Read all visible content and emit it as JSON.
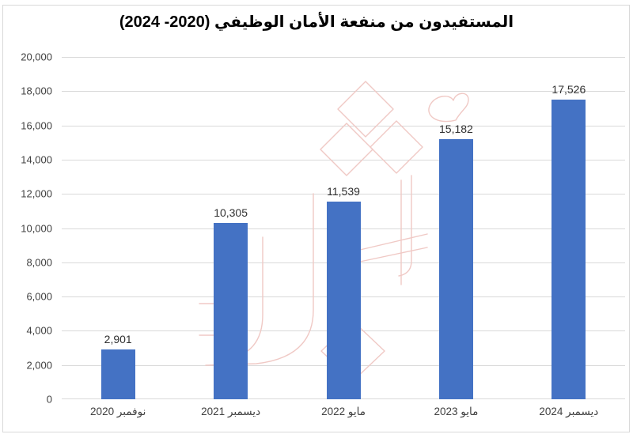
{
  "colors": {
    "bar": "#4472C4",
    "gridline": "#D9D9D9",
    "border": "#D9D9D9",
    "axis_text": "#404040",
    "title_text": "#000000",
    "watermark_outline": "#F0C9C5"
  },
  "chart_data": {
    "type": "bar",
    "title": "المستفيدون من منفعة الأمان الوظيفي (2020- 2024)",
    "categories": [
      "نوفمبر 2020",
      "ديسمبر 2021",
      "مايو 2022",
      "مايو 2023",
      "ديسمبر 2024"
    ],
    "values": [
      2901,
      10305,
      11539,
      15182,
      17526
    ],
    "data_labels": [
      "2,901",
      "10,305",
      "11,539",
      "15,182",
      "17,526"
    ],
    "y_ticks": [
      "20,000",
      "18,000",
      "16,000",
      "14,000",
      "12,000",
      "10,000",
      "8,000",
      "6,000",
      "4,000",
      "2,000",
      "0"
    ],
    "ylim": [
      0,
      20000
    ],
    "y_tick_step": 2000,
    "xlabel": "",
    "ylabel": "",
    "grid": true,
    "legend": "none",
    "text_direction": "rtl"
  }
}
